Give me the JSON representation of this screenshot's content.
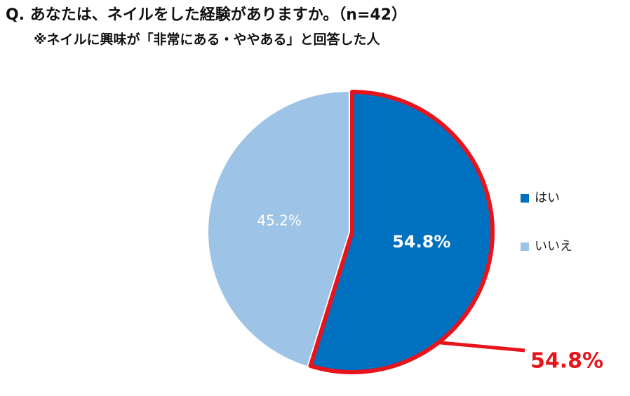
{
  "chart_data": {
    "type": "pie",
    "title": "Q. あなたは、ネイルをした経験がありますか。（n=42）",
    "subtitle": "※ネイルに興味が「非常にある・ややある」と回答した人",
    "categories": [
      "はい",
      "いいえ"
    ],
    "values": [
      54.8,
      45.2
    ],
    "value_labels": [
      "54.8%",
      "45.2%"
    ],
    "colors": [
      "#0070c0",
      "#9dc3e6"
    ],
    "highlight_color": "#e8141c",
    "annotation": "54.8%",
    "legend": "right"
  }
}
